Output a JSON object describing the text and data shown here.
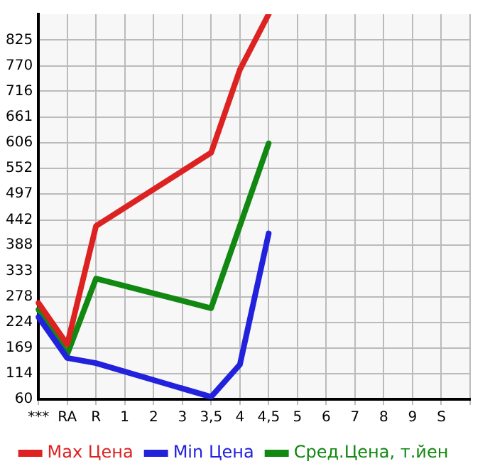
{
  "chart_data": {
    "type": "line",
    "categories": [
      "***",
      "RA",
      "R",
      "1",
      "2",
      "3",
      "3,5",
      "4",
      "4,5",
      "5",
      "6",
      "7",
      "8",
      "9",
      "S",
      null
    ],
    "series": [
      {
        "name": "Max Цена",
        "color": "#dd2222",
        "values": [
          265,
          177,
          429,
          null,
          null,
          null,
          585,
          762,
          880,
          null,
          null,
          null,
          null,
          null,
          null,
          null
        ]
      },
      {
        "name": "Min Цена",
        "color": "#2222dd",
        "values": [
          235,
          148,
          137,
          null,
          null,
          null,
          65,
          134,
          413,
          null,
          null,
          null,
          null,
          null,
          null,
          null
        ]
      },
      {
        "name": "Сред.Цена, т.йен",
        "color": "#118811",
        "values": [
          251,
          156,
          317,
          null,
          null,
          null,
          254,
          null,
          605,
          null,
          null,
          null,
          null,
          null,
          null,
          null
        ]
      }
    ],
    "ylim": [
      60,
      880
    ],
    "yticks": [
      60,
      114,
      169,
      224,
      278,
      333,
      388,
      442,
      497,
      552,
      606,
      661,
      716,
      770,
      825
    ],
    "grid": true,
    "legend": "bottom",
    "marker": "none",
    "line_style": "solid"
  }
}
